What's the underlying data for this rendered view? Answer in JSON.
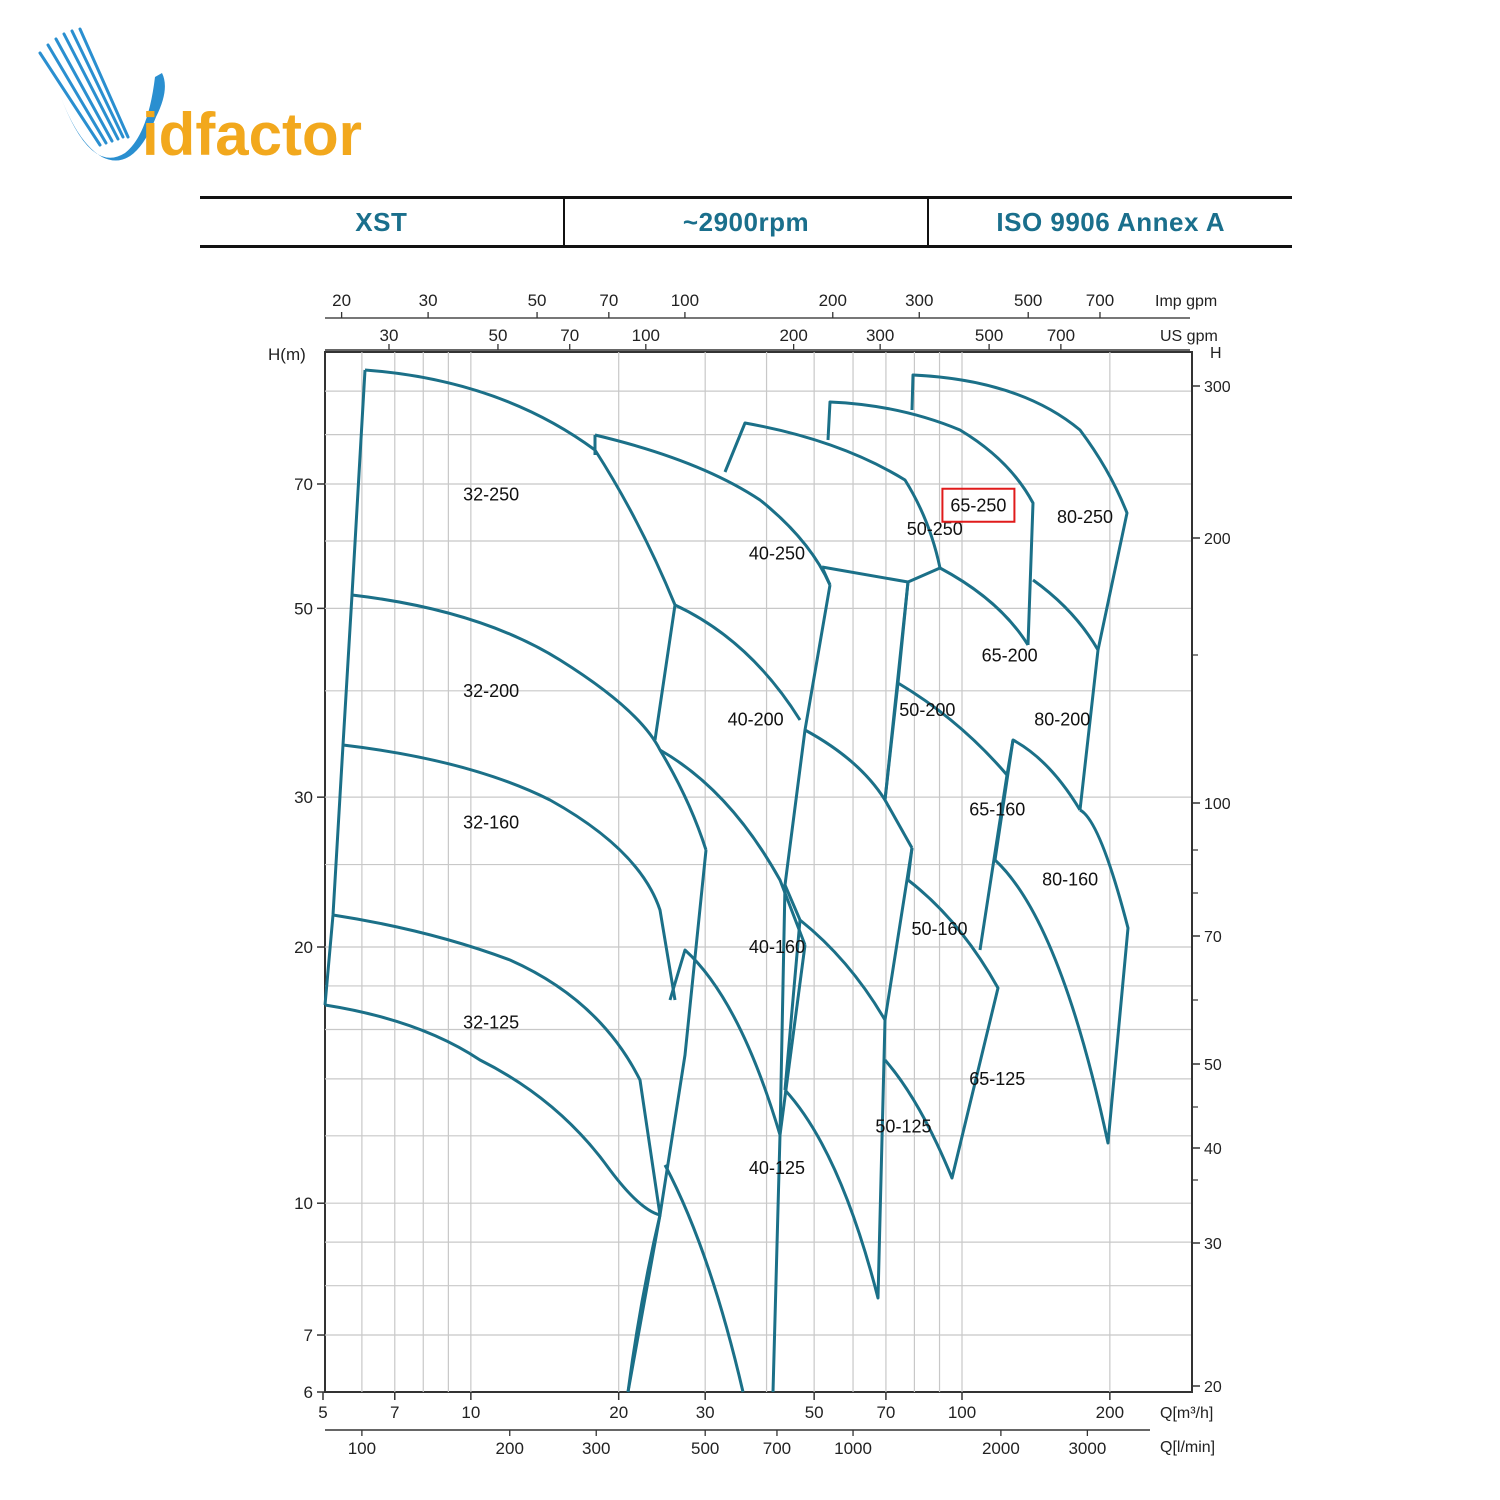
{
  "logo": {
    "text": "Vidfactor",
    "letter_v": "V",
    "rest": "idfactor"
  },
  "header": {
    "model": "XST",
    "speed": "~2900rpm",
    "standard": "ISO 9906   Annex A"
  },
  "colors": {
    "curve": "#1b7088",
    "grid": "#c8c8c8",
    "axis": "#333333",
    "highlight": "#e01b1b",
    "header_text": "#1a6f8c"
  },
  "chart_data": {
    "type": "line",
    "x_scale": "log",
    "y_scale": "log",
    "grid": true,
    "x_axis": {
      "unit_label": "Q[m³/h]",
      "range": [
        5,
        260
      ],
      "ticks": [
        5,
        7,
        10,
        20,
        30,
        50,
        70,
        100,
        200
      ]
    },
    "x_axis_lmin": {
      "unit_label": "Q[l/min]",
      "ticks": [
        100,
        200,
        300,
        500,
        700,
        1000,
        2000,
        3000
      ]
    },
    "x_axis_imp": {
      "unit_label": "Imp gpm",
      "ticks": [
        20,
        30,
        50,
        70,
        100,
        200,
        300,
        500,
        700
      ]
    },
    "x_axis_us": {
      "unit_label": "US gpm",
      "ticks": [
        30,
        50,
        70,
        100,
        200,
        300,
        500,
        700
      ]
    },
    "y_axis": {
      "label": "H(m)",
      "range": [
        6,
        100
      ],
      "ticks": [
        6,
        7,
        10,
        20,
        30,
        50,
        70
      ]
    },
    "y_axis_right": {
      "label": "H",
      "ticks": [
        20,
        30,
        40,
        50,
        70,
        100,
        200,
        300
      ]
    },
    "highlighted_region": "65-250",
    "regions": [
      {
        "name": "32-250",
        "label_at": [
          11,
          68
        ],
        "outline": [
          [
            5.9,
            92
          ],
          [
            9,
            89
          ],
          [
            14,
            81
          ],
          [
            22,
            67
          ],
          [
            28,
            55
          ],
          [
            30,
            50
          ],
          [
            28.5,
            41
          ],
          [
            27,
            36
          ],
          [
            25,
            33
          ],
          [
            21,
            29
          ],
          [
            15,
            26
          ],
          [
            9,
            23.5
          ],
          [
            5.6,
            22.5
          ],
          [
            5.5,
            30
          ],
          [
            5.7,
            45
          ],
          [
            5.9,
            92
          ]
        ]
      },
      {
        "name": "32-200",
        "label_at": [
          11,
          40
        ],
        "outline": [
          [
            5.7,
            51
          ],
          [
            8,
            49
          ],
          [
            12,
            45
          ],
          [
            17,
            40
          ],
          [
            22,
            35
          ],
          [
            27,
            30
          ],
          [
            31,
            26.5
          ],
          [
            34,
            21
          ],
          [
            37,
            17
          ],
          [
            35,
            14
          ],
          [
            32,
            11.5
          ],
          [
            28,
            10.5
          ],
          [
            20,
            9.7
          ],
          [
            14,
            9.4
          ],
          [
            9,
            9.0
          ],
          [
            5.2,
            8.6
          ],
          [
            5.3,
            11
          ],
          [
            5.6,
            18
          ],
          [
            5.7,
            51
          ]
        ]
      },
      {
        "name": "32-160",
        "label_at": [
          11,
          28
        ]
      },
      {
        "name": "32-125",
        "label_at": [
          11,
          16.3
        ],
        "outline": [
          [
            5.0,
            16.5
          ],
          [
            8,
            15.5
          ],
          [
            12,
            14
          ],
          [
            16,
            12
          ],
          [
            20,
            10
          ],
          [
            23,
            7.8
          ],
          [
            24,
            6
          ]
        ]
      },
      {
        "name": "40-250",
        "label_at": [
          42,
          58
        ],
        "outline": [
          [
            21.5,
            85
          ],
          [
            35,
            80
          ],
          [
            50,
            70
          ],
          [
            58,
            62
          ],
          [
            63,
            57
          ],
          [
            60,
            47
          ],
          [
            57,
            40
          ],
          [
            52,
            36
          ],
          [
            48,
            33
          ],
          [
            40,
            32
          ],
          [
            34,
            31
          ],
          [
            30,
            30
          ],
          [
            26,
            29
          ],
          [
            22,
            28
          ],
          [
            21.5,
            85
          ]
        ]
      },
      {
        "name": "40-200",
        "label_at": [
          38,
          37
        ],
        "outline": [
          [
            29,
            48
          ],
          [
            40,
            44
          ],
          [
            52,
            39
          ],
          [
            57,
            37
          ],
          [
            59,
            31
          ],
          [
            61,
            26
          ],
          [
            57,
            21
          ],
          [
            52,
            18
          ],
          [
            47,
            16
          ],
          [
            42,
            15.5
          ],
          [
            36,
            15
          ],
          [
            29,
            14.3
          ],
          [
            27,
            15
          ],
          [
            26,
            18
          ],
          [
            25,
            25
          ],
          [
            29,
            48
          ]
        ]
      },
      {
        "name": "40-160",
        "label_at": [
          42,
          20
        ]
      },
      {
        "name": "40-125",
        "label_at": [
          42,
          11
        ],
        "outline": [
          [
            27,
            13.4
          ],
          [
            33,
            12
          ],
          [
            38,
            9
          ],
          [
            41,
            6
          ]
        ]
      },
      {
        "name": "50-250",
        "label_at": [
          88,
          62
        ],
        "outline": [
          [
            47,
            83
          ],
          [
            70,
            75
          ],
          [
            90,
            68
          ],
          [
            108,
            61
          ],
          [
            115,
            56
          ],
          [
            102,
            53
          ],
          [
            88,
            53
          ],
          [
            77,
            55
          ],
          [
            65,
            53
          ],
          [
            47,
            83
          ]
        ]
      },
      {
        "name": "50-200",
        "label_at": [
          85,
          38
        ]
      },
      {
        "name": "50-160",
        "label_at": [
          90,
          21
        ]
      },
      {
        "name": "50-125",
        "label_at": [
          76,
          12.3
        ],
        "outline": [
          [
            57,
            14
          ],
          [
            62,
            13
          ],
          [
            66,
            11
          ],
          [
            68,
            8.2
          ]
        ]
      },
      {
        "name": "65-250",
        "label_at": [
          108,
          66
        ],
        "outline": [
          [
            72,
            90
          ],
          [
            100,
            88
          ],
          [
            130,
            78
          ],
          [
            150,
            68
          ],
          [
            145,
            60
          ],
          [
            130,
            56
          ],
          [
            120,
            56
          ],
          [
            110,
            55
          ],
          [
            102,
            53
          ],
          [
            95,
            90
          ],
          [
            72,
            90
          ]
        ]
      },
      {
        "name": "65-200",
        "label_at": [
          125,
          44
        ]
      },
      {
        "name": "65-160",
        "label_at": [
          118,
          29
        ]
      },
      {
        "name": "65-125",
        "label_at": [
          118,
          14
        ]
      },
      {
        "name": "80-250",
        "label_at": [
          178,
          64
        ]
      },
      {
        "name": "80-200",
        "label_at": [
          160,
          37
        ]
      },
      {
        "name": "80-160",
        "label_at": [
          166,
          24
        ]
      }
    ]
  }
}
